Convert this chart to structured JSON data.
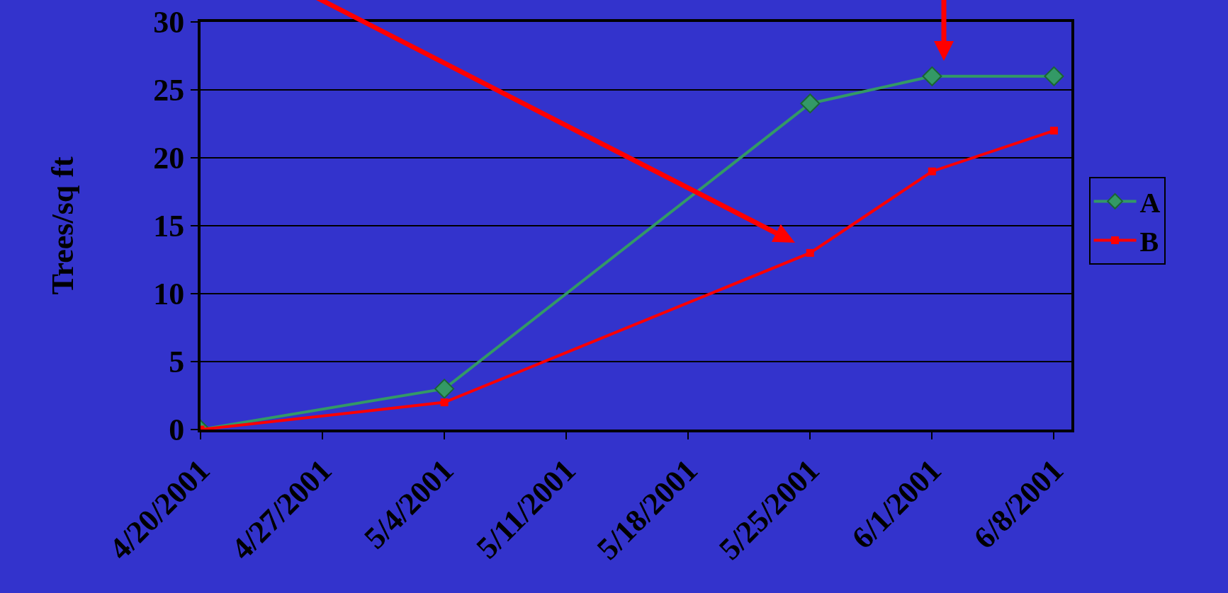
{
  "chart_data": {
    "type": "line",
    "ylabel": "Trees/sq ft",
    "x": [
      "2001-04-20",
      "2001-05-04",
      "2001-05-25",
      "2001-06-01",
      "2001-06-08"
    ],
    "series": [
      {
        "name": "A",
        "color": "#339966",
        "marker": "diamond",
        "values": [
          0,
          3,
          24,
          26,
          26
        ]
      },
      {
        "name": "B",
        "color": "#ff0000",
        "marker": "square",
        "values": [
          0,
          2,
          13,
          19,
          22
        ]
      }
    ],
    "xlim": [
      "2001-04-20",
      "2001-06-09"
    ],
    "xticks": [
      {
        "value": "2001-04-20",
        "label": "4/20/2001"
      },
      {
        "value": "2001-04-27",
        "label": "4/27/2001"
      },
      {
        "value": "2001-05-04",
        "label": "5/4/2001"
      },
      {
        "value": "2001-05-11",
        "label": "5/11/2001"
      },
      {
        "value": "2001-05-18",
        "label": "5/18/2001"
      },
      {
        "value": "2001-05-25",
        "label": "5/25/2001"
      },
      {
        "value": "2001-06-01",
        "label": "6/1/2001"
      },
      {
        "value": "2001-06-08",
        "label": "6/8/2001"
      }
    ],
    "ylim": [
      0,
      30
    ],
    "yticks": [
      0,
      5,
      10,
      15,
      20,
      25,
      30
    ],
    "grid": "y",
    "legend": "right",
    "line_style": "solid"
  }
}
